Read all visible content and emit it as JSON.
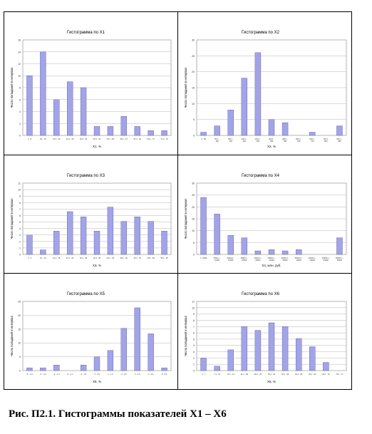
{
  "caption": "Рис. П2.1. Гистограммы показателей X1 – X6",
  "ylabel": "Число попаданий в интервал",
  "chart_data": [
    {
      "type": "bar",
      "title": "Гистограмма по X1",
      "xlabel": "X1, %",
      "ylim": [
        0,
        16
      ],
      "yticks": [
        0,
        2,
        4,
        6,
        8,
        10,
        12,
        14,
        16
      ],
      "categories": [
        "1 - 8",
        "8,1 - 15",
        "15,1 - 22",
        "22,1 - 29",
        "29,1 - 36",
        "36,1 - 43",
        "43,1 - 50",
        "50,1 - 57",
        "57,1 - 64",
        "64,1 - 71",
        "71,1 - 78"
      ],
      "values": [
        10,
        14,
        6,
        9,
        8,
        1.5,
        1.5,
        3.2,
        1.5,
        0.8,
        0.8
      ],
      "color": "#a3a3e8"
    },
    {
      "type": "bar",
      "title": "Гистограмма по X2",
      "xlabel": "X2, %",
      "ylim": [
        0,
        30
      ],
      "yticks": [
        0,
        5,
        10,
        15,
        20,
        25,
        30
      ],
      "categories": [
        "0 - 80",
        "80,1 - 160",
        "160,1 - 240",
        "240,1 - 320",
        "320,1 - 400",
        "400,1 - 480",
        "480,1 - 560",
        "560,1 - 640",
        "640,1 - 720",
        "720,1 - 800",
        "800,1 - 880"
      ],
      "values": [
        1,
        3,
        8,
        18,
        26,
        5,
        4,
        0,
        1,
        0,
        3
      ],
      "color": "#a3a3e8"
    },
    {
      "type": "bar",
      "title": "Гистограмма по X3",
      "xlabel": "X3, %",
      "ylim": [
        0,
        11
      ],
      "yticks": [
        0,
        1,
        2,
        3,
        4,
        5,
        6,
        7,
        8,
        9,
        10,
        11
      ],
      "categories": [
        "1 - 5",
        "5,1 - 10",
        "10,1 - 15",
        "15,1 - 20",
        "20,1 - 25",
        "25,1 - 30",
        "30,1 - 35",
        "35,1 - 40",
        "40,1 - 45",
        "45,1 - 50",
        "50,1 - 55"
      ],
      "values": [
        3,
        0.7,
        3.6,
        6.6,
        5.8,
        3.6,
        7.3,
        5.1,
        5.8,
        5.1,
        3.6
      ],
      "color": "#a3a3e8"
    },
    {
      "type": "bar",
      "title": "Гистограмма по X4",
      "xlabel": "X4, млн. руб.",
      "ylim": [
        0,
        30
      ],
      "yticks": [
        0,
        5,
        10,
        15,
        20,
        25,
        30
      ],
      "categories": [
        "1 - 5000",
        "5000,1 - 10000",
        "10000,1 - 15000",
        "15000,1 - 20000",
        "20000,1 - 25000",
        "25000,1 - 30000",
        "30000,1 - 35000",
        "35000,1 - 40000",
        "40000,1 - 45000",
        "45000,1 - 50000",
        "50000,1 - 55000"
      ],
      "values": [
        24,
        17,
        8,
        7,
        1.5,
        2,
        1.5,
        2,
        0,
        0,
        7
      ],
      "color": "#a3a3e8"
    },
    {
      "type": "bar",
      "title": "Гистограмма по X5",
      "xlabel": "X5, %",
      "ylim": [
        0,
        25
      ],
      "yticks": [
        0,
        5,
        10,
        15,
        20,
        25
      ],
      "categories": [
        "-5 - -4,1",
        "-4 - -3,1",
        "-3 - -2,1",
        "-2 - -1,1",
        "-1 - -0,1",
        "0 - 0,9",
        "1 - 1,9",
        "2 - 2,9",
        "3 - 3,9",
        "4 - 4,9",
        "5 - 5,9"
      ],
      "values": [
        1,
        1,
        2,
        0,
        2,
        5,
        7.3,
        15.3,
        22.7,
        13.3,
        1
      ],
      "color": "#a3a3e8"
    },
    {
      "type": "bar",
      "title": "Гистограмма по X6",
      "xlabel": "X6, %",
      "ylim": [
        0,
        11
      ],
      "yticks": [
        0,
        1,
        2,
        3,
        4,
        5,
        6,
        7,
        8,
        9,
        10,
        11
      ],
      "categories": [
        "1 - 7",
        "7,1 - 14",
        "14,1 - 21",
        "21,1 - 28",
        "28,1 - 35",
        "35,1 - 42",
        "42,1 - 49",
        "49,1 - 56",
        "56,1 - 63",
        "63,1 - 70",
        "70,1 - 77"
      ],
      "values": [
        2,
        0.7,
        3.3,
        7,
        6.4,
        7.6,
        7,
        5.1,
        3.8,
        1.3,
        0
      ],
      "color": "#a3a3e8"
    }
  ]
}
